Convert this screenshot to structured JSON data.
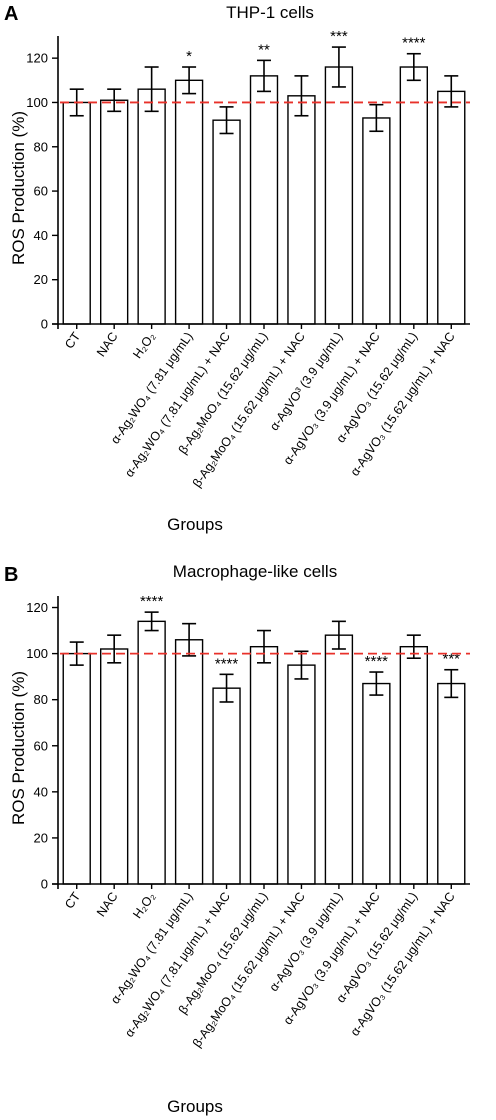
{
  "chart_data": [
    {
      "type": "bar",
      "panel": "A",
      "title": "THP-1 cells",
      "xlabel": "Groups",
      "ylabel": "ROS Production (%)",
      "ylim": [
        0,
        130
      ],
      "yticks": [
        "0",
        "20",
        "40",
        "60",
        "80",
        "100",
        "120"
      ],
      "reference_line": 100,
      "reference_color": "#e8312a",
      "categories": [
        "CT",
        "NAC",
        "H₂O₂",
        "α-Ag₂WO₄ (7.81 μg/mL)",
        "α-Ag₂WO₄ (7.81 μg/mL) + NAC",
        "β-Ag₂MoO₄ (15.62 μg/mL)",
        "β-Ag₂MoO₄ (15.62 μg/mL) + NAC",
        "α-AgVO³ (3.9 μg/mL)",
        "α-AgVO₃ (3.9 μg/mL) + NAC",
        "α-AgVO₃ (15.62 μg/mL)",
        "α-AgVO₃ (15.62 μg/mL) + NAC"
      ],
      "values": [
        100,
        101,
        106,
        110,
        92,
        112,
        103,
        116,
        93,
        116,
        105
      ],
      "errors": [
        6,
        5,
        10,
        6,
        6,
        7,
        9,
        9,
        6,
        6,
        7
      ],
      "significance": [
        "",
        "",
        "",
        "*",
        "",
        "**",
        "",
        "***",
        "",
        "****",
        ""
      ]
    },
    {
      "type": "bar",
      "panel": "B",
      "title": "Macrophage-like cells",
      "xlabel": "Groups",
      "ylabel": "ROS Production (%)",
      "ylim": [
        0,
        125
      ],
      "yticks": [
        "0",
        "20",
        "40",
        "60",
        "80",
        "100",
        "120"
      ],
      "reference_line": 100,
      "reference_color": "#e8312a",
      "categories": [
        "CT",
        "NAC",
        "H₂O₂",
        "α-Ag₂WO₄ (7.81 μg/mL)",
        "α-Ag₂WO₄ (7.81 μg/mL) + NAC",
        "β-Ag₂MoO₄ (15.62 μg/mL)",
        "β-Ag₂MoO₄ (15.62 μg/mL) + NAC",
        "α-AgVO₃ (3.9 μg/mL)",
        "α-AgVO₃ (3.9 μg/mL) + NAC",
        "α-AgVO₃ (15.62 μg/mL)",
        "α-AgVO₃ (15.62 μg/mL) + NAC"
      ],
      "values": [
        100,
        102,
        114,
        106,
        85,
        103,
        95,
        108,
        87,
        103,
        87
      ],
      "errors": [
        5,
        6,
        4,
        7,
        6,
        7,
        6,
        6,
        5,
        5,
        6
      ],
      "significance": [
        "",
        "",
        "****",
        "",
        "****",
        "",
        "",
        "",
        "****",
        "",
        "***"
      ]
    }
  ]
}
